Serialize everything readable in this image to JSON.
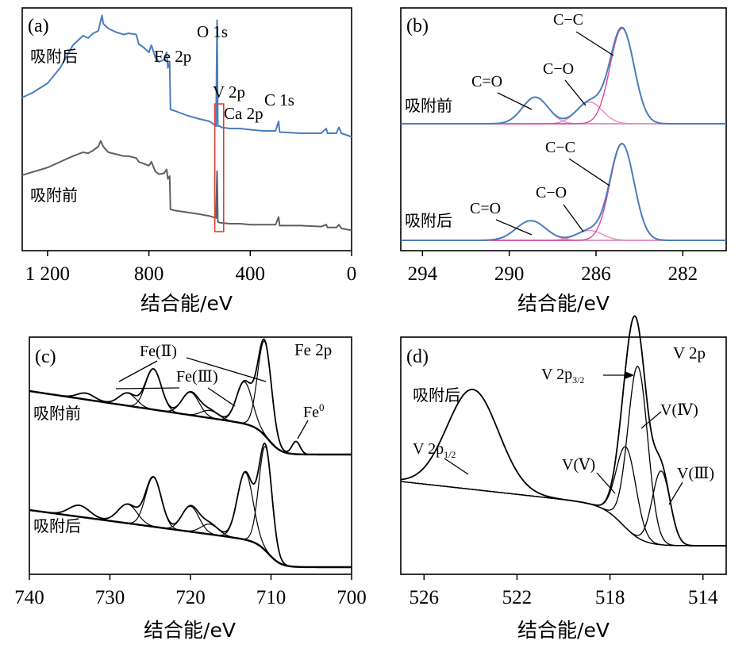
{
  "colors": {
    "blue": "#4a7ebb",
    "gray": "#5f5f5f",
    "magenta": "#e0449c",
    "pink": "#e58bc0",
    "baseline": "#c8c8c8",
    "black": "#000000",
    "box": "#e2412f"
  },
  "chart_data": [
    {
      "type": "line",
      "panel": "(a)",
      "xlabel": "结合能/eV",
      "xlim": [
        1300,
        0
      ],
      "ticks": [
        1200,
        800,
        400,
        0
      ],
      "tick_labels": [
        "1 200",
        "800",
        "400",
        "0"
      ],
      "series": [
        {
          "name": "吸附后",
          "color": "blue",
          "offset": 1,
          "points": [
            [
              1300,
              0.3
            ],
            [
              1260,
              0.34
            ],
            [
              1200,
              0.42
            ],
            [
              1150,
              0.55
            ],
            [
              1100,
              0.74
            ],
            [
              1060,
              0.82
            ],
            [
              1040,
              0.8
            ],
            [
              1020,
              0.84
            ],
            [
              1000,
              0.86
            ],
            [
              985,
              0.99
            ],
            [
              980,
              0.92
            ],
            [
              960,
              0.88
            ],
            [
              930,
              0.85
            ],
            [
              900,
              0.83
            ],
            [
              880,
              0.84
            ],
            [
              850,
              0.83
            ],
            [
              840,
              0.75
            ],
            [
              820,
              0.72
            ],
            [
              800,
              0.68
            ],
            [
              790,
              0.74
            ],
            [
              775,
              0.64
            ],
            [
              760,
              0.6
            ],
            [
              740,
              0.62
            ],
            [
              730,
              0.68
            ],
            [
              725,
              0.55
            ],
            [
              718,
              0.6
            ],
            [
              715,
              0.2
            ],
            [
              700,
              0.19
            ],
            [
              650,
              0.15
            ],
            [
              600,
              0.12
            ],
            [
              560,
              0.1
            ],
            [
              535,
              0.06
            ],
            [
              531,
              0.95
            ],
            [
              528,
              0.06
            ],
            [
              520,
              0.06
            ],
            [
              515,
              0.05
            ],
            [
              480,
              0.04
            ],
            [
              440,
              0.04
            ],
            [
              400,
              0.03
            ],
            [
              350,
              0.02
            ],
            [
              300,
              0.02
            ],
            [
              288,
              0.1
            ],
            [
              284,
              0.01
            ],
            [
              200,
              0.0
            ],
            [
              120,
              0.0
            ],
            [
              100,
              0.04
            ],
            [
              95,
              0.0
            ],
            [
              60,
              0.0
            ],
            [
              50,
              0.05
            ],
            [
              40,
              0.0
            ],
            [
              0,
              -0.03
            ]
          ]
        },
        {
          "name": "吸附前",
          "color": "gray",
          "offset": 0,
          "points": [
            [
              1300,
              0.66
            ],
            [
              1250,
              0.7
            ],
            [
              1200,
              0.74
            ],
            [
              1150,
              0.8
            ],
            [
              1100,
              0.86
            ],
            [
              1060,
              0.9
            ],
            [
              1040,
              0.89
            ],
            [
              1020,
              0.92
            ],
            [
              1000,
              0.96
            ],
            [
              990,
              1.02
            ],
            [
              980,
              0.96
            ],
            [
              960,
              0.9
            ],
            [
              930,
              0.88
            ],
            [
              900,
              0.86
            ],
            [
              880,
              0.86
            ],
            [
              850,
              0.84
            ],
            [
              840,
              0.8
            ],
            [
              820,
              0.78
            ],
            [
              800,
              0.76
            ],
            [
              790,
              0.8
            ],
            [
              775,
              0.7
            ],
            [
              760,
              0.67
            ],
            [
              740,
              0.68
            ],
            [
              730,
              0.72
            ],
            [
              725,
              0.62
            ],
            [
              718,
              0.65
            ],
            [
              715,
              0.3
            ],
            [
              700,
              0.29
            ],
            [
              650,
              0.27
            ],
            [
              600,
              0.25
            ],
            [
              560,
              0.23
            ],
            [
              535,
              0.21
            ],
            [
              531,
              0.7
            ],
            [
              528,
              0.17
            ],
            [
              520,
              0.16
            ],
            [
              480,
              0.15
            ],
            [
              440,
              0.15
            ],
            [
              400,
              0.14
            ],
            [
              350,
              0.14
            ],
            [
              300,
              0.14
            ],
            [
              288,
              0.22
            ],
            [
              284,
              0.13
            ],
            [
              200,
              0.13
            ],
            [
              120,
              0.12
            ],
            [
              100,
              0.14
            ],
            [
              95,
              0.11
            ],
            [
              60,
              0.11
            ],
            [
              50,
              0.14
            ],
            [
              40,
              0.1
            ],
            [
              0,
              0.08
            ]
          ]
        }
      ],
      "labels": [
        {
          "text": "O 1s",
          "x": 531
        },
        {
          "text": "Fe 2p",
          "x": 711
        },
        {
          "text": "V 2p",
          "x": 517
        },
        {
          "text": "Ca 2p",
          "x": 347
        },
        {
          "text": "C 1s",
          "x": 285
        }
      ],
      "highlight_box_x": [
        540,
        505
      ]
    },
    {
      "type": "line",
      "panel": "(b)",
      "xlabel": "结合能/eV",
      "xlim": [
        295,
        280
      ],
      "ticks": [
        294,
        290,
        286,
        282
      ],
      "tick_labels": [
        "294",
        "290",
        "286",
        "282"
      ],
      "curves": [
        {
          "name": "吸附前",
          "offset": 1,
          "labels": [
            "C=O",
            "C-O",
            "C-C"
          ],
          "peaks": [
            {
              "center": 288.8,
              "height": 0.27,
              "fwhm": 1.4
            },
            {
              "center": 286.3,
              "height": 0.22,
              "fwhm": 1.4
            },
            {
              "center": 284.8,
              "height": 0.97,
              "fwhm": 1.3
            }
          ]
        },
        {
          "name": "吸附后",
          "offset": 0,
          "labels": [
            "C=O",
            "C-O",
            "C-C"
          ],
          "peaks": [
            {
              "center": 289.0,
              "height": 0.2,
              "fwhm": 1.6
            },
            {
              "center": 286.3,
              "height": 0.1,
              "fwhm": 1.4
            },
            {
              "center": 284.8,
              "height": 0.98,
              "fwhm": 1.3
            }
          ]
        }
      ]
    },
    {
      "type": "line",
      "panel": "(c)",
      "title": "Fe 2p",
      "xlabel": "结合能/eV",
      "xlim": [
        740,
        700
      ],
      "ticks": [
        740,
        730,
        720,
        710,
        700
      ],
      "tick_labels": [
        "740",
        "730",
        "720",
        "710",
        "700"
      ],
      "curves": [
        {
          "name": "吸附前",
          "offset": 1,
          "labels": [
            "Fe(Ⅱ)",
            "Fe(Ⅲ)",
            "Fe⁰"
          ],
          "peaks": [
            {
              "center": 733.0,
              "height": 0.05,
              "fwhm": 2.5
            },
            {
              "center": 727.8,
              "height": 0.1,
              "fwhm": 2.5
            },
            {
              "center": 724.6,
              "height": 0.32,
              "fwhm": 2.3
            },
            {
              "center": 720.0,
              "height": 0.18,
              "fwhm": 2.5
            },
            {
              "center": 717.6,
              "height": 0.06,
              "fwhm": 2.5
            },
            {
              "center": 713.3,
              "height": 0.33,
              "fwhm": 2.3
            },
            {
              "center": 710.8,
              "height": 0.74,
              "fwhm": 2.0
            },
            {
              "center": 706.9,
              "height": 0.1,
              "fwhm": 1.2
            }
          ]
        },
        {
          "name": "吸附后",
          "offset": 0,
          "peaks": [
            {
              "center": 733.8,
              "height": 0.09,
              "fwhm": 3.0
            },
            {
              "center": 727.8,
              "height": 0.15,
              "fwhm": 2.8
            },
            {
              "center": 724.6,
              "height": 0.39,
              "fwhm": 2.3
            },
            {
              "center": 720.0,
              "height": 0.2,
              "fwhm": 2.5
            },
            {
              "center": 717.6,
              "height": 0.08,
              "fwhm": 2.5
            },
            {
              "center": 713.2,
              "height": 0.53,
              "fwhm": 2.3
            },
            {
              "center": 710.7,
              "height": 0.82,
              "fwhm": 1.9
            }
          ]
        }
      ]
    },
    {
      "type": "line",
      "panel": "(d)",
      "title": "V 2p",
      "subtitle": "吸附后",
      "xlabel": "结合能/eV",
      "xlim": [
        527,
        513
      ],
      "ticks": [
        526,
        522,
        518,
        514
      ],
      "tick_labels": [
        "526",
        "522",
        "518",
        "514"
      ],
      "peaks": [
        {
          "label": "V 2p1/2",
          "center": 523.9,
          "height": 0.42,
          "fwhm": 2.6
        },
        {
          "label": "V(Ⅴ)",
          "center": 517.3,
          "height": 0.34,
          "fwhm": 1.0
        },
        {
          "label": "V(Ⅳ)",
          "center": 516.8,
          "height": 0.72,
          "fwhm": 1.0
        },
        {
          "label": "V(Ⅲ)",
          "center": 515.8,
          "height": 0.31,
          "fwhm": 0.9
        }
      ],
      "envelope_label": "V 2p3/2"
    }
  ],
  "text": {
    "panel_a": "(a)",
    "panel_b": "(b)",
    "panel_c": "(c)",
    "panel_d": "(d)",
    "after": "吸附后",
    "before": "吸附前",
    "xlabel": "结合能/eV",
    "o1s": "O 1s",
    "fe2p": "Fe 2p",
    "v2p": "V 2p",
    "ca2p": "Ca 2p",
    "c1s": "C 1s",
    "co_double": "C=O",
    "co_single": "C−O",
    "cc": "C−C",
    "fe2": "Fe(Ⅱ)",
    "fe3": "Fe(Ⅲ)",
    "fe0_base": "Fe",
    "fe0_sup": "0",
    "c_title": "Fe 2p",
    "d_title": "V 2p",
    "v32_base": "V 2p",
    "v32_sub": "3/2",
    "v12_base": "V 2p",
    "v12_sub": "1/2",
    "v5": "V(Ⅴ)",
    "v4": "V(Ⅳ)",
    "v3": "V(Ⅲ)"
  }
}
